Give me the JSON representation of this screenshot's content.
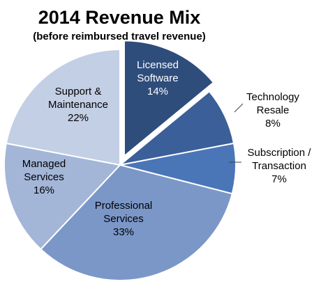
{
  "chart_data": {
    "type": "pie",
    "title": "2014 Revenue Mix",
    "subtitle": "(before reimbursed travel revenue)",
    "start_angle_deg": 0,
    "direction": "clockwise",
    "slices": [
      {
        "label": [
          "Licensed",
          "Software"
        ],
        "value": 14,
        "pct_label": "14%",
        "color": "#2e4d7b",
        "text_color": "#ffffff",
        "exploded": true
      },
      {
        "label": [
          "Technology",
          "Resale"
        ],
        "value": 8,
        "pct_label": "8%",
        "color": "#3b5f98",
        "text_color": "#000000",
        "exploded": false
      },
      {
        "label": [
          "Subscription /",
          "Transaction"
        ],
        "value": 7,
        "pct_label": "7%",
        "color": "#4a76b8",
        "text_color": "#000000",
        "exploded": false
      },
      {
        "label": [
          "Professional",
          "Services"
        ],
        "value": 33,
        "pct_label": "33%",
        "color": "#7b97c8",
        "text_color": "#000000",
        "exploded": false
      },
      {
        "label": [
          "Managed",
          "Services"
        ],
        "value": 16,
        "pct_label": "16%",
        "color": "#a3b6d8",
        "text_color": "#000000",
        "exploded": false
      },
      {
        "label": [
          "Support &",
          "Maintenance"
        ],
        "value": 22,
        "pct_label": "22%",
        "color": "#c3cfe5",
        "text_color": "#000000",
        "exploded": false
      }
    ]
  }
}
